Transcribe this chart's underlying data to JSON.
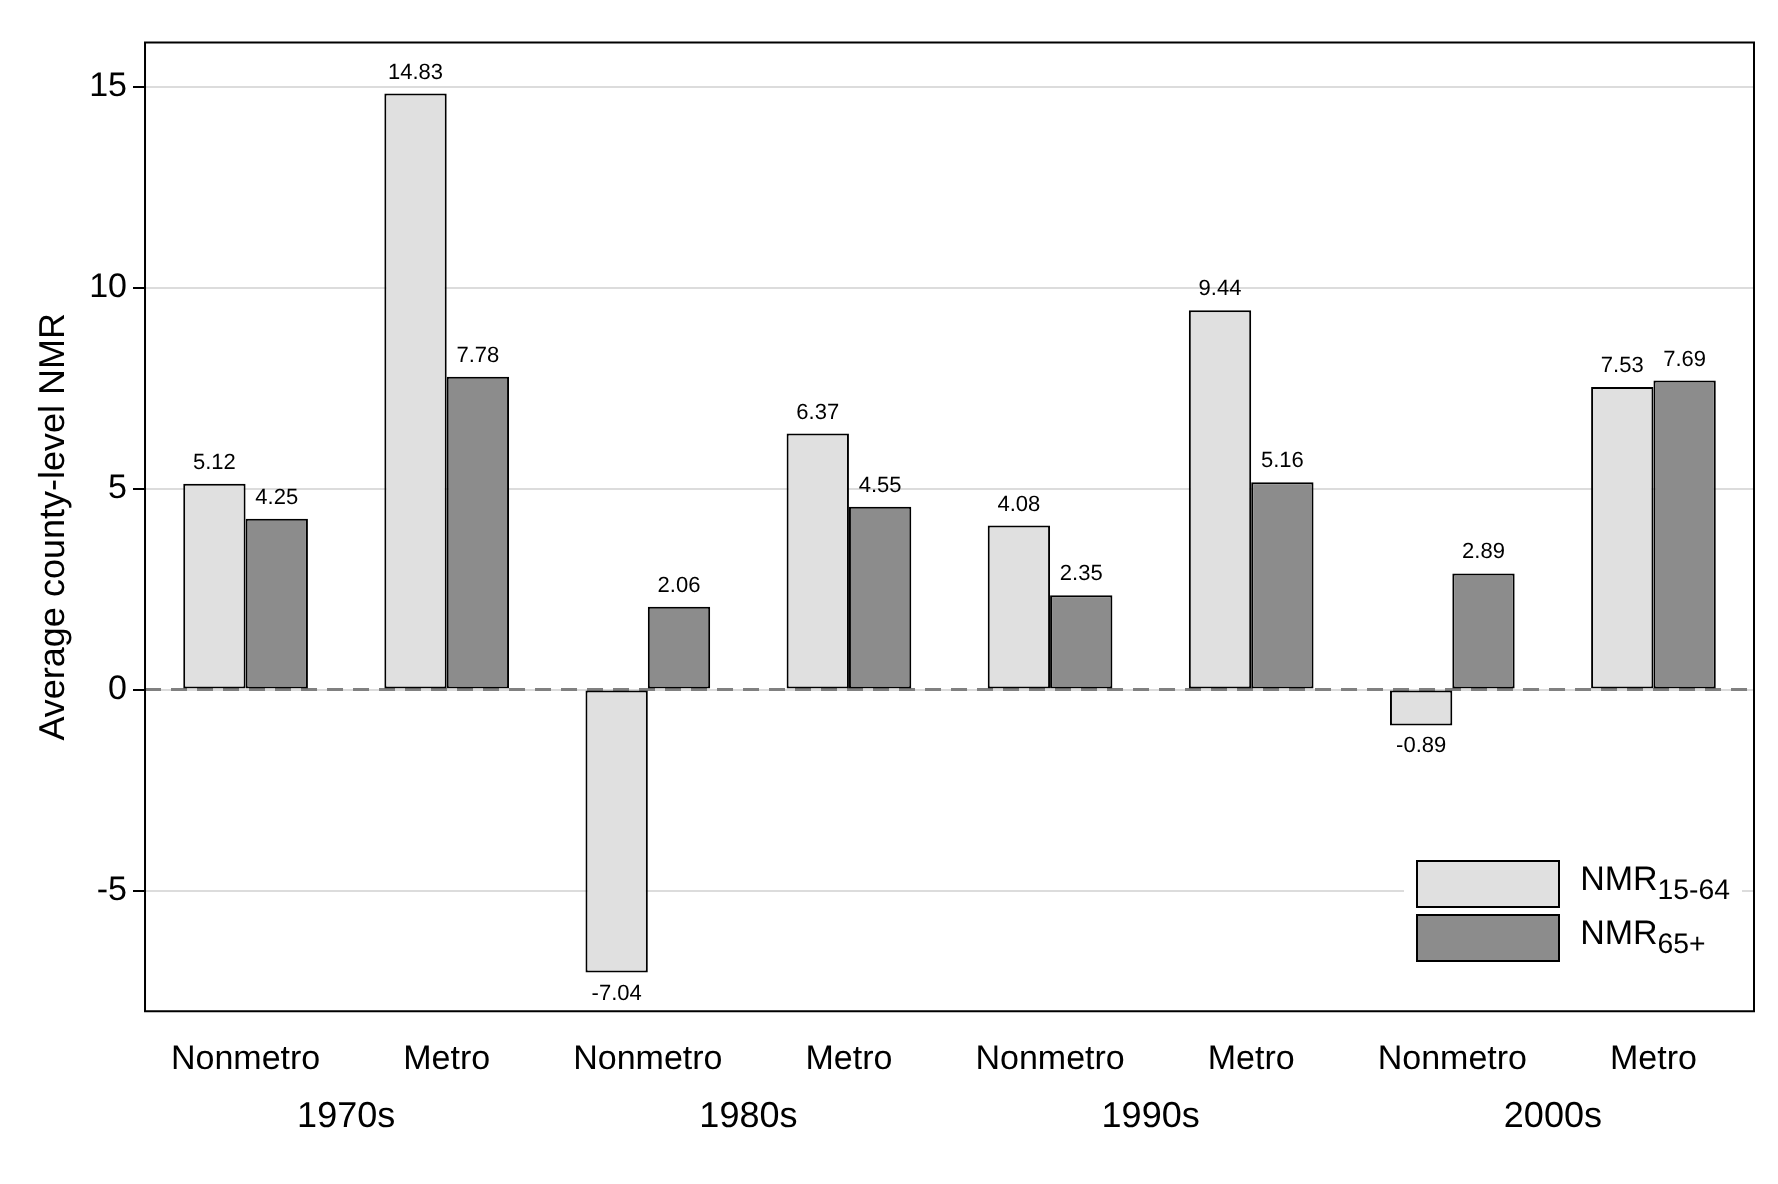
{
  "chart_data": {
    "type": "bar",
    "ylabel": "Average county-level NMR",
    "categories": [
      "Nonmetro",
      "Metro",
      "Nonmetro",
      "Metro",
      "Nonmetro",
      "Metro",
      "Nonmetro",
      "Metro"
    ],
    "series": [
      {
        "name": "NMR$_{15-64}$",
        "color": "#e0e0e0",
        "values": [
          5.12,
          14.83,
          -7.04,
          6.37,
          4.08,
          9.44,
          -0.89,
          7.53
        ]
      },
      {
        "name": "NMR$_{65+}$",
        "color": "#8c8c8c",
        "values": [
          4.25,
          7.78,
          2.06,
          4.55,
          2.35,
          5.16,
          2.89,
          7.69
        ]
      }
    ],
    "annotations": [
      "1970s",
      "1980s",
      "1990s",
      "2000s"
    ],
    "ylim": [
      -8,
      16.1
    ],
    "yticks": [
      -5,
      0,
      5,
      10,
      15
    ],
    "grid": "y",
    "legend": "bottom right",
    "data_labels": true,
    "ref_lines": [
      {
        "axis": "y",
        "value": 0,
        "color": "#808080",
        "line_style": "dashed"
      }
    ]
  }
}
